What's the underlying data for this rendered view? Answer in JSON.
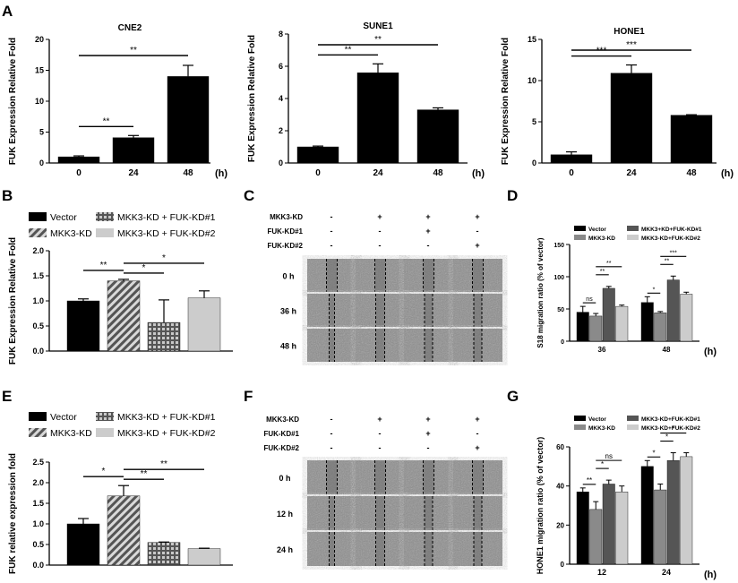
{
  "panel_letters": {
    "A": "A",
    "B": "B",
    "C": "C",
    "D": "D",
    "E": "E",
    "F": "F",
    "G": "G"
  },
  "colors": {
    "black": "#000000",
    "gray_light": "#cccccc",
    "gray_mid": "#8a8a8a",
    "gray_dark": "#555555",
    "wound_bg": "#8c8c8c"
  },
  "chart_data": [
    {
      "id": "A1",
      "type": "bar",
      "title": "CNE2",
      "ylabel": "FUK Expression Relative Fold",
      "xunit": "(h)",
      "categories": [
        "0",
        "24",
        "48"
      ],
      "values": [
        1.0,
        4.1,
        14.0
      ],
      "errors": [
        0.15,
        0.35,
        1.8
      ],
      "ylim": [
        0,
        20
      ],
      "yticks": [
        "0",
        "5",
        "10",
        "15",
        "20"
      ],
      "sig": [
        {
          "from": 0,
          "to": 1,
          "label": "**"
        },
        {
          "from": 0,
          "to": 2,
          "label": "**"
        }
      ]
    },
    {
      "id": "A2",
      "type": "bar",
      "title": "SUNE1",
      "ylabel": "FUK Expression Relative Fold",
      "xunit": "(h)",
      "categories": [
        "0",
        "24",
        "48"
      ],
      "values": [
        1.0,
        5.6,
        3.3
      ],
      "errors": [
        0.05,
        0.55,
        0.12
      ],
      "ylim": [
        0,
        8
      ],
      "yticks": [
        "0",
        "2",
        "4",
        "6",
        "8"
      ],
      "sig": [
        {
          "from": 0,
          "to": 1,
          "label": "**"
        },
        {
          "from": 0,
          "to": 2,
          "label": "**"
        }
      ]
    },
    {
      "id": "A3",
      "type": "bar",
      "title": "HONE1",
      "ylabel": "FUK Expression Relative Fold",
      "xunit": "(h)",
      "categories": [
        "0",
        "24",
        "48"
      ],
      "values": [
        1.0,
        10.9,
        5.8
      ],
      "errors": [
        0.35,
        1.0,
        0.06
      ],
      "ylim": [
        0,
        15
      ],
      "yticks": [
        "0",
        "5",
        "10",
        "15"
      ],
      "sig": [
        {
          "from": 0,
          "to": 1,
          "label": "***"
        },
        {
          "from": 0,
          "to": 2,
          "label": "***"
        }
      ]
    },
    {
      "id": "B",
      "type": "bar",
      "ylabel": "FUK Expression Relative Fold",
      "legend": [
        "Vector",
        "MKK3-KD",
        "MKK3-KD + FUK-KD#1",
        "MKK3-KD + FUK-KD#2"
      ],
      "values": [
        1.0,
        1.4,
        0.57,
        1.06
      ],
      "errors": [
        0.04,
        0.03,
        0.45,
        0.14
      ],
      "ylim": [
        0,
        2.0
      ],
      "yticks": [
        "0.0",
        "0.5",
        "1.0",
        "1.5",
        "2.0"
      ],
      "sig": [
        {
          "from": 0,
          "to": 1,
          "label": "**"
        },
        {
          "from": 1,
          "to": 2,
          "label": "*"
        },
        {
          "from": 1,
          "to": 3,
          "label": "*"
        }
      ]
    },
    {
      "id": "D",
      "type": "bar",
      "ylabel": "S18 migration ratio (% of vector)",
      "xunit": "(h)",
      "legend": [
        "Vector",
        "MKK3-KD",
        "MKK3+KD+FUK-KD#1",
        "MKK3-KD+FUK-KD#2"
      ],
      "categories": [
        "36",
        "48"
      ],
      "series": [
        {
          "name": "Vector",
          "values": [
            45,
            60
          ],
          "errors": [
            9,
            9
          ]
        },
        {
          "name": "MKK3-KD",
          "values": [
            39,
            44
          ],
          "errors": [
            4,
            2
          ]
        },
        {
          "name": "MKK3+KD+FUK-KD#1",
          "values": [
            82,
            95
          ],
          "errors": [
            3,
            6
          ]
        },
        {
          "name": "MKK3-KD+FUK-KD#2",
          "values": [
            54,
            73
          ],
          "errors": [
            2,
            3
          ]
        }
      ],
      "ylim": [
        0,
        150
      ],
      "yticks": [
        "0",
        "50",
        "100",
        "150"
      ],
      "sig": [
        {
          "group": 0,
          "from": 0,
          "to": 1,
          "label": "ns"
        },
        {
          "group": 0,
          "from": 1,
          "to": 2,
          "label": "**"
        },
        {
          "group": 0,
          "from": 1,
          "to": 3,
          "label": "**"
        },
        {
          "group": 1,
          "from": 0,
          "to": 1,
          "label": "*"
        },
        {
          "group": 1,
          "from": 1,
          "to": 2,
          "label": "**"
        },
        {
          "group": 1,
          "from": 1,
          "to": 3,
          "label": "***"
        }
      ]
    },
    {
      "id": "E",
      "type": "bar",
      "ylabel": "FUK relative expression fold",
      "legend": [
        "Vector",
        "MKK3-KD",
        "MKK3-KD + FUK-KD#1",
        "MKK3-KD + FUK-KD#2"
      ],
      "values": [
        1.0,
        1.68,
        0.55,
        0.4
      ],
      "errors": [
        0.13,
        0.25,
        0.01,
        0.01
      ],
      "ylim": [
        0,
        2.5
      ],
      "yticks": [
        "0.0",
        "0.5",
        "1.0",
        "1.5",
        "2.0",
        "2.5"
      ],
      "sig": [
        {
          "from": 0,
          "to": 1,
          "label": "*"
        },
        {
          "from": 1,
          "to": 2,
          "label": "**"
        },
        {
          "from": 1,
          "to": 3,
          "label": "**"
        }
      ]
    },
    {
      "id": "G",
      "type": "bar",
      "ylabel": "HONE1 migration ratio (% of vector)",
      "xunit": "(h)",
      "legend": [
        "Vector",
        "MKK3-KD",
        "MKK3-KD+FUK-KD#1",
        "MKK3-KD+FUK-KD#2"
      ],
      "categories": [
        "12",
        "24"
      ],
      "series": [
        {
          "name": "Vector",
          "values": [
            37,
            50
          ],
          "errors": [
            2,
            3
          ]
        },
        {
          "name": "MKK3-KD",
          "values": [
            28,
            38
          ],
          "errors": [
            4,
            3
          ]
        },
        {
          "name": "MKK3-KD+FUK-KD#1",
          "values": [
            41,
            53
          ],
          "errors": [
            2,
            4
          ]
        },
        {
          "name": "MKK3-KD+FUK-KD#2",
          "values": [
            37,
            55
          ],
          "errors": [
            3,
            2
          ]
        }
      ],
      "ylim": [
        0,
        60
      ],
      "yticks": [
        "0",
        "20",
        "40",
        "60"
      ],
      "sig": [
        {
          "group": 0,
          "from": 0,
          "to": 1,
          "label": "**"
        },
        {
          "group": 0,
          "from": 1,
          "to": 2,
          "label": "*"
        },
        {
          "group": 0,
          "from": 1,
          "to": 3,
          "label": "ns"
        },
        {
          "group": 1,
          "from": 0,
          "to": 1,
          "label": "*"
        },
        {
          "group": 1,
          "from": 1,
          "to": 2,
          "label": "*"
        },
        {
          "group": 1,
          "from": 1,
          "to": 3,
          "label": "*"
        }
      ]
    }
  ],
  "wound_C": {
    "rows": [
      {
        "label": "MKK3-KD",
        "marks": [
          "-",
          "+",
          "+",
          "+"
        ]
      },
      {
        "label": "FUK-KD#1",
        "marks": [
          "-",
          "-",
          "+",
          "-"
        ]
      },
      {
        "label": "FUK-KD#2",
        "marks": [
          "-",
          "-",
          "-",
          "+"
        ]
      }
    ],
    "times": [
      "0 h",
      "36 h",
      "48 h"
    ]
  },
  "wound_F": {
    "rows": [
      {
        "label": "MKK3-KD",
        "marks": [
          "-",
          "+",
          "+",
          "+"
        ]
      },
      {
        "label": "FUK-KD#1",
        "marks": [
          "-",
          "-",
          "+",
          "-"
        ]
      },
      {
        "label": "FUK-KD#2",
        "marks": [
          "-",
          "-",
          "-",
          "+"
        ]
      }
    ],
    "times": [
      "0 h",
      "12 h",
      "24 h"
    ]
  }
}
